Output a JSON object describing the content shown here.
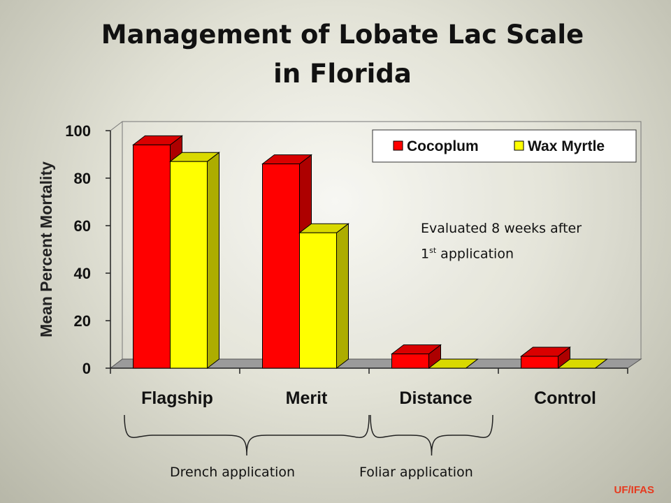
{
  "title_line1": "Management of Lobate Lac Scale",
  "title_line2": "in Florida",
  "annotation": {
    "line1": "Evaluated 8 weeks after",
    "line2_pre": "1",
    "line2_sup": "st",
    "line2_post": " application"
  },
  "groups": [
    {
      "label": "Drench application",
      "from": "Flagship",
      "to": "Merit"
    },
    {
      "label": "Foliar application",
      "from": "Distance",
      "to": "Distance"
    }
  ],
  "footer": "UF/IFAS",
  "chart_data": {
    "type": "bar",
    "categories": [
      "Flagship",
      "Merit",
      "Distance",
      "Control"
    ],
    "series": [
      {
        "name": "Cocoplum",
        "values": [
          94,
          86,
          6,
          5
        ],
        "color": "#ff0000"
      },
      {
        "name": "Wax Myrtle",
        "values": [
          87,
          57,
          0,
          0
        ],
        "color": "#ffff00"
      }
    ],
    "ylabel": "Mean Percent Mortality",
    "xlabel": "",
    "ylim": [
      0,
      100
    ],
    "yticks": [
      0,
      20,
      40,
      60,
      80,
      100
    ],
    "legend": "top-right",
    "grid": false,
    "style": "3d"
  }
}
